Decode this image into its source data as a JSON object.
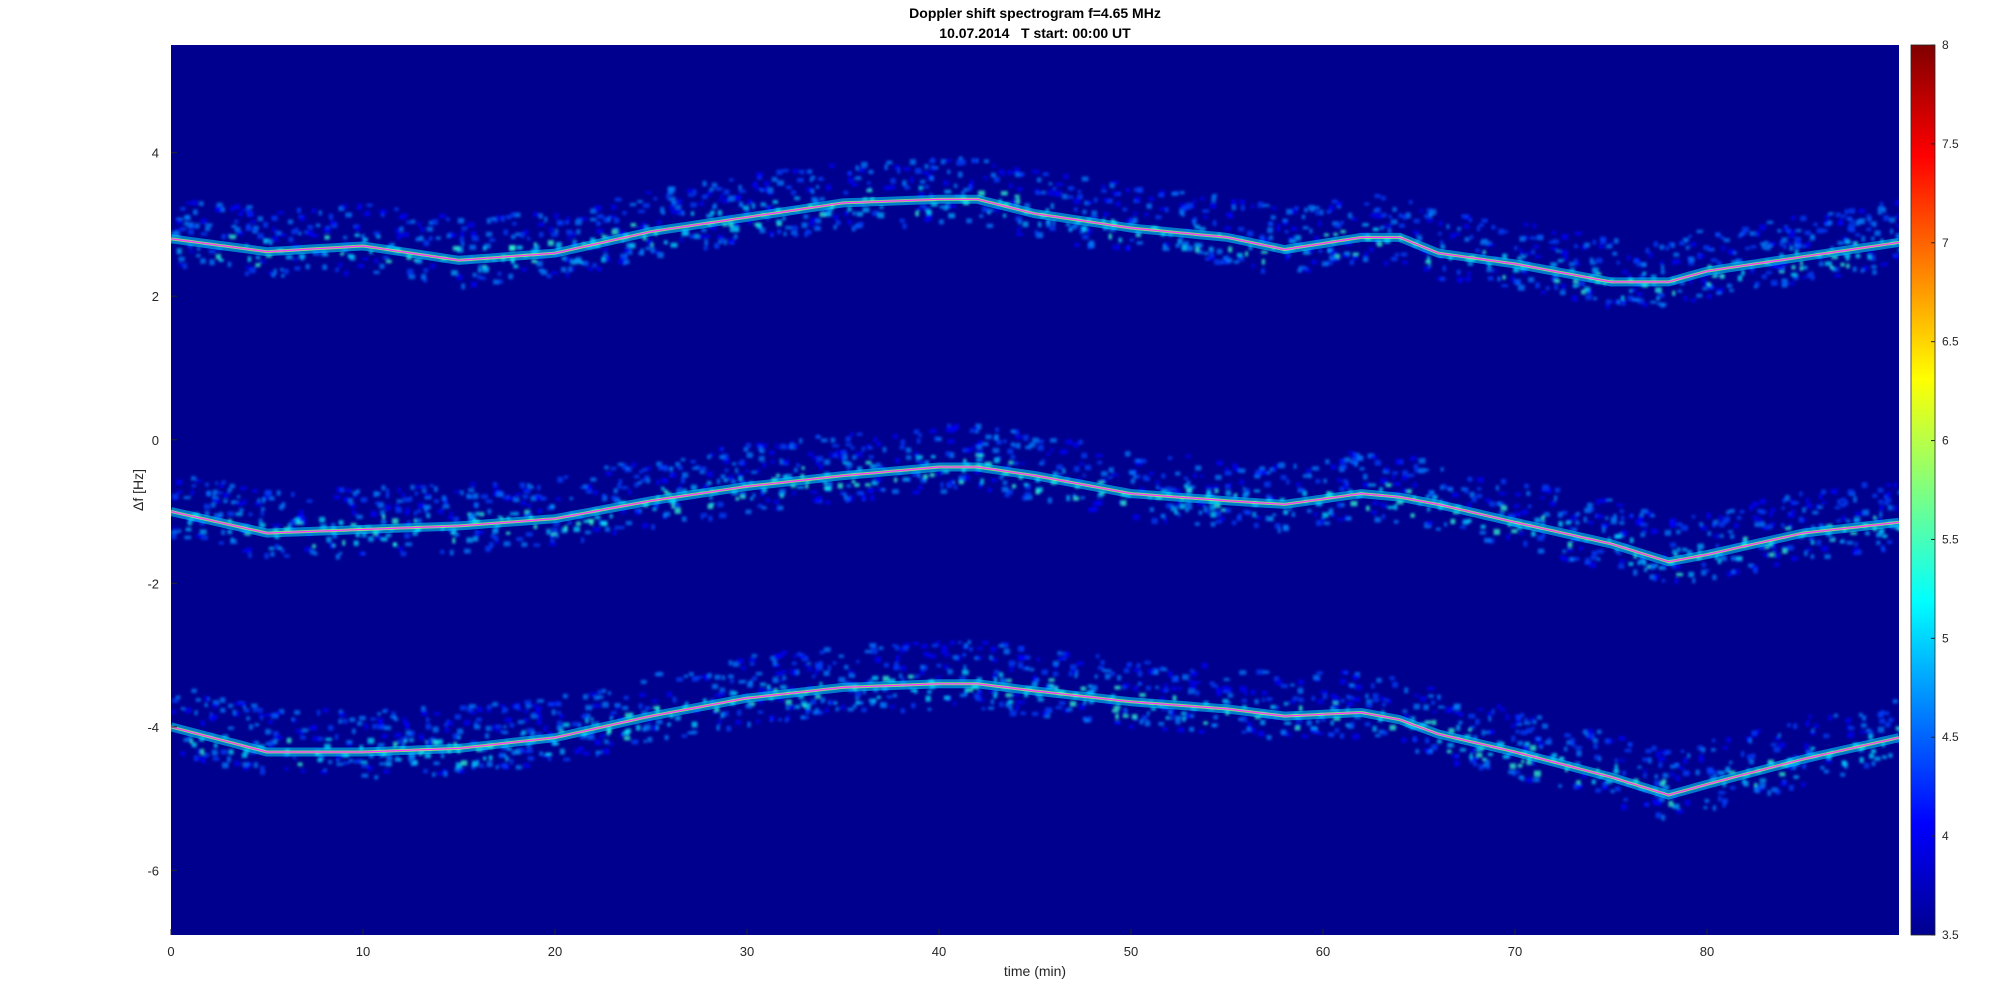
{
  "chart_data": {
    "type": "heatmap",
    "title": "Doppler shift spectrogram f=4.65 MHz",
    "subtitle": "10.07.2014   T start: 00:00 UT",
    "xlabel": "time (min)",
    "ylabel": "Δf [Hz]",
    "xlim": [
      0,
      90
    ],
    "ylim": [
      -6.9,
      5.5
    ],
    "xticks": [
      0,
      10,
      20,
      30,
      40,
      50,
      60,
      70,
      80
    ],
    "yticks": [
      -6,
      -4,
      -2,
      0,
      2,
      4
    ],
    "colorbar": {
      "range": [
        3.5,
        8
      ],
      "ticks": [
        3.5,
        4,
        4.5,
        5,
        5.5,
        6,
        6.5,
        7,
        7.5,
        8
      ],
      "colormap": "jet"
    },
    "background_color": "#00008f",
    "trace_color": "#ff33ff",
    "series": [
      {
        "x": [
          0,
          5,
          10,
          15,
          20,
          25,
          30,
          35,
          40,
          42,
          45,
          50,
          55,
          58,
          62,
          64,
          66,
          70,
          75,
          78,
          80,
          85,
          90
        ],
        "y": [
          2.8,
          2.62,
          2.7,
          2.5,
          2.6,
          2.9,
          3.1,
          3.3,
          3.35,
          3.35,
          3.15,
          2.95,
          2.82,
          2.65,
          2.82,
          2.82,
          2.6,
          2.45,
          2.2,
          2.2,
          2.35,
          2.55,
          2.75
        ]
      },
      {
        "x": [
          0,
          5,
          10,
          15,
          20,
          25,
          30,
          35,
          40,
          42,
          45,
          50,
          55,
          58,
          62,
          64,
          66,
          70,
          75,
          78,
          80,
          85,
          90
        ],
        "y": [
          -1.0,
          -1.3,
          -1.25,
          -1.2,
          -1.1,
          -0.85,
          -0.65,
          -0.5,
          -0.38,
          -0.38,
          -0.5,
          -0.75,
          -0.85,
          -0.9,
          -0.75,
          -0.8,
          -0.9,
          -1.15,
          -1.45,
          -1.7,
          -1.6,
          -1.3,
          -1.15
        ]
      },
      {
        "x": [
          0,
          5,
          10,
          15,
          20,
          25,
          30,
          35,
          40,
          42,
          45,
          50,
          55,
          58,
          62,
          64,
          66,
          70,
          75,
          78,
          80,
          85,
          90
        ],
        "y": [
          -4.0,
          -4.35,
          -4.35,
          -4.3,
          -4.15,
          -3.85,
          -3.6,
          -3.45,
          -3.4,
          -3.4,
          -3.5,
          -3.65,
          -3.75,
          -3.85,
          -3.8,
          -3.9,
          -4.1,
          -4.35,
          -4.7,
          -4.95,
          -4.8,
          -4.45,
          -4.15
        ]
      }
    ]
  }
}
